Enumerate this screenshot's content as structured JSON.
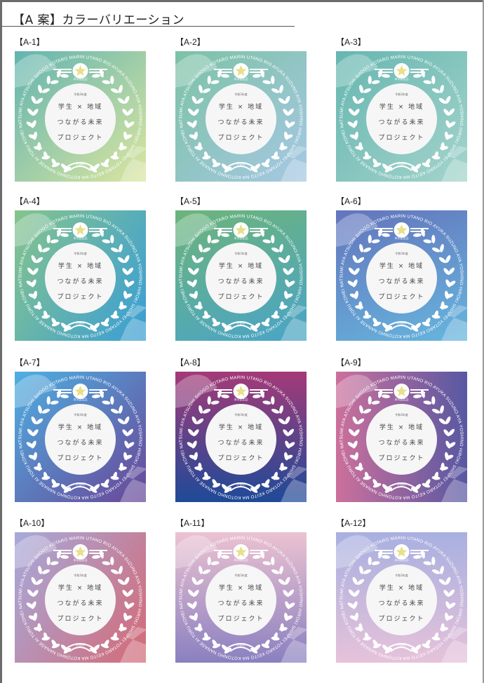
{
  "page": {
    "title": "【A 案】カラーバリエーション"
  },
  "emblem": {
    "badge_text": "本学認定品",
    "year": "令和3年度",
    "line1": "学生 × 地域",
    "line2": "つながる未来",
    "line3": "プロジェクト",
    "prefecture": "京都府",
    "ring_text": "KOTONHO NANASE AI TORU KOHEI NATSUMI  AYA ATSUSHI SHOGO KOTARO MARIN UTANO RIO AYUKA SUZUNO AYA YOSHINO HIROKI SHINPEI YOTARO KEITO MAHO",
    "star_color": "#e8e08a"
  },
  "variations": [
    {
      "label": "【A-1】",
      "from": "#62b4b0",
      "to": "#dbe6a0",
      "dir": "135deg"
    },
    {
      "label": "【A-2】",
      "from": "#7cc2a4",
      "to": "#a6c8e4",
      "dir": "135deg"
    },
    {
      "label": "【A-3】",
      "from": "#66b6b0",
      "to": "#a4d4cc",
      "dir": "135deg"
    },
    {
      "label": "【A-4】",
      "from": "#86c48c",
      "to": "#3a9ed6",
      "dir": "120deg"
    },
    {
      "label": "【A-5】",
      "from": "#6cb47a",
      "to": "#4aa4c8",
      "dir": "160deg"
    },
    {
      "label": "【A-6】",
      "from": "#6474bc",
      "to": "#66b6de",
      "dir": "160deg"
    },
    {
      "label": "【A-7】",
      "from": "#4eb0e2",
      "to": "#6a4698",
      "dir": "135deg"
    },
    {
      "label": "【A-8】",
      "from": "#a43a78",
      "to": "#1e4a98",
      "dir": "180deg"
    },
    {
      "label": "【A-9】",
      "from": "#cc709c",
      "to": "#5858a2",
      "dir": "90deg"
    },
    {
      "label": "【A-10】",
      "from": "#a6aadc",
      "to": "#d46a76",
      "dir": "120deg"
    },
    {
      "label": "【A-11】",
      "from": "#ecc2d2",
      "to": "#8a80c0",
      "dir": "180deg"
    },
    {
      "label": "【A-12】",
      "from": "#a8b0e0",
      "to": "#e6c2da",
      "dir": "180deg"
    }
  ]
}
